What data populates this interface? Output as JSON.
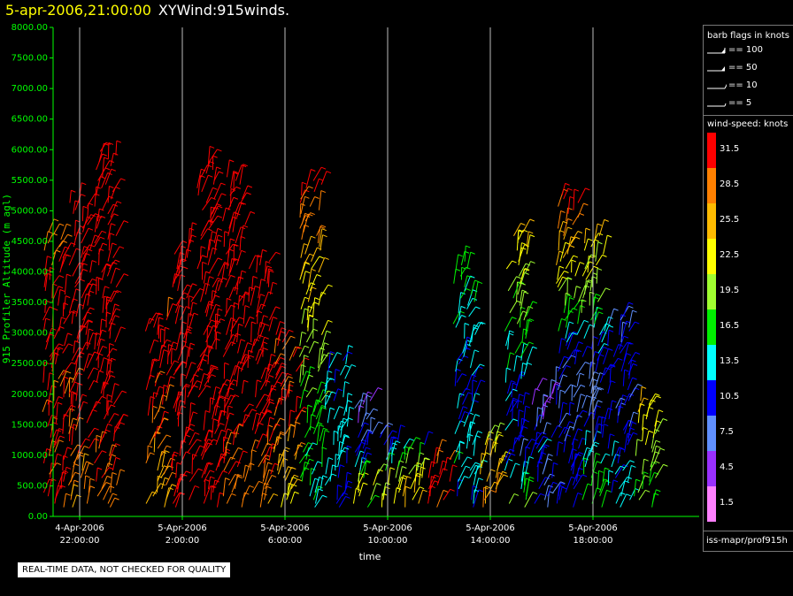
{
  "header": {
    "timestamp": "5-apr-2006,21:00:00",
    "product": "XYWind:915winds."
  },
  "legend": {
    "flag_title": "barb flags in knots",
    "flags": [
      {
        "label": "== 100",
        "knots": 100
      },
      {
        "label": "== 50",
        "knots": 50
      },
      {
        "label": "== 10",
        "knots": 10
      },
      {
        "label": "== 5",
        "knots": 5
      }
    ],
    "speed_title": "wind-speed: knots",
    "speed_bins": [
      {
        "label": "31.5",
        "color": "#ff0000"
      },
      {
        "label": "28.5",
        "color": "#ff8000"
      },
      {
        "label": "25.5",
        "color": "#ffbb00"
      },
      {
        "label": "22.5",
        "color": "#ffff00"
      },
      {
        "label": "19.5",
        "color": "#a0ff30"
      },
      {
        "label": "16.5",
        "color": "#00ee00"
      },
      {
        "label": "13.5",
        "color": "#00ffff"
      },
      {
        "label": "10.5",
        "color": "#0000ff"
      },
      {
        "label": "7.5",
        "color": "#6090ff"
      },
      {
        "label": "4.5",
        "color": "#9a30ff"
      },
      {
        "label": "1.5",
        "color": "#ff80ff"
      }
    ],
    "source": "iss-mapr/prof915h"
  },
  "notice": "REAL-TIME DATA, NOT CHECKED FOR QUALITY",
  "colors": {
    "axis": "#00ff00",
    "background": "#000000",
    "gridline": "#bbbbbb"
  },
  "chart_data": {
    "type": "scatter",
    "ylabel": "915 Profiler Altitude (m agl)",
    "xlabel": "time",
    "ylim": [
      0,
      8000
    ],
    "xlim_hours_since_4apr_2100": [
      0,
      24
    ],
    "yticks": [
      "0.00",
      "500.00",
      "1000.00",
      "1500.00",
      "2000.00",
      "2500.00",
      "3000.00",
      "3500.00",
      "4000.00",
      "4500.00",
      "5000.00",
      "5500.00",
      "6000.00",
      "6500.00",
      "7000.00",
      "7500.00",
      "8000.00"
    ],
    "xticks": [
      {
        "date": "4-Apr-2006",
        "time": "22:00:00"
      },
      {
        "date": "5-Apr-2006",
        "time": "2:00:00"
      },
      {
        "date": "5-Apr-2006",
        "time": "6:00:00"
      },
      {
        "date": "5-Apr-2006",
        "time": "10:00:00"
      },
      {
        "date": "5-Apr-2006",
        "time": "14:00:00"
      },
      {
        "date": "5-Apr-2006",
        "time": "18:00:00"
      }
    ],
    "grid": "vertical",
    "wind_columns": [
      {
        "x": "4-Apr-2006 21:00",
        "top": 4700,
        "speeds": [
          30,
          30,
          31,
          32,
          28
        ]
      },
      {
        "x": "4-Apr-2006 22:00",
        "top": 5200,
        "speeds": [
          26,
          30,
          32,
          33,
          33
        ]
      },
      {
        "x": "4-Apr-2006 23:00",
        "top": 6000,
        "speeds": [
          28,
          32,
          33,
          34,
          34
        ]
      },
      {
        "x": "5-Apr-2006 01:00",
        "top": 3300,
        "speeds": [
          26,
          27,
          30,
          31,
          31
        ]
      },
      {
        "x": "5-Apr-2006 02:00",
        "top": 4500,
        "speeds": [
          30,
          33,
          33,
          34,
          34
        ]
      },
      {
        "x": "5-Apr-2006 03:00",
        "top": 5800,
        "speeds": [
          31,
          32,
          33,
          34,
          34
        ]
      },
      {
        "x": "5-Apr-2006 04:00",
        "top": 5600,
        "speeds": [
          28,
          31,
          33,
          34,
          34
        ]
      },
      {
        "x": "5-Apr-2006 05:00",
        "top": 4200,
        "speeds": [
          27,
          30,
          33,
          33,
          34
        ]
      },
      {
        "x": "5-Apr-2006 06:00",
        "top": 3000,
        "speeds": [
          22,
          25,
          29,
          30,
          31
        ]
      },
      {
        "x": "5-Apr-2006 07:00",
        "top": 5500,
        "speeds": [
          14,
          17,
          20,
          25,
          32
        ]
      },
      {
        "x": "5-Apr-2006 08:00",
        "top": 2600,
        "speeds": [
          10,
          12,
          14,
          13,
          12
        ]
      },
      {
        "x": "5-Apr-2006 09:00",
        "top": 1900,
        "speeds": [
          18,
          22,
          10,
          8,
          5
        ]
      },
      {
        "x": "5-Apr-2006 10:00",
        "top": 1400,
        "speeds": [
          24,
          22,
          18,
          10,
          8
        ]
      },
      {
        "x": "5-Apr-2006 11:00",
        "top": 1200,
        "speeds": [
          26,
          24,
          20,
          12
        ]
      },
      {
        "x": "5-Apr-2006 12:00",
        "top": 1000,
        "speeds": [
          30,
          32,
          31,
          28
        ]
      },
      {
        "x": "5-Apr-2006 13:00",
        "top": 4200,
        "speeds": [
          12,
          14,
          11,
          14,
          17
        ]
      },
      {
        "x": "5-Apr-2006 14:00",
        "top": 1300,
        "speeds": [
          28,
          26,
          24,
          20
        ]
      },
      {
        "x": "5-Apr-2006 15:00",
        "top": 4700,
        "speeds": [
          20,
          10,
          12,
          16,
          20,
          25
        ]
      },
      {
        "x": "5-Apr-2006 16:00",
        "top": 2100,
        "speeds": [
          10,
          8,
          12,
          6,
          5
        ]
      },
      {
        "x": "5-Apr-2006 17:00",
        "top": 5300,
        "speeds": [
          12,
          10,
          8,
          16,
          25,
          32
        ]
      },
      {
        "x": "5-Apr-2006 18:00",
        "top": 4600,
        "speeds": [
          18,
          14,
          8,
          12,
          20,
          24
        ]
      },
      {
        "x": "5-Apr-2006 19:00",
        "top": 3300,
        "speeds": [
          14,
          12,
          9,
          11,
          8
        ]
      },
      {
        "x": "5-Apr-2006 20:00",
        "top": 1900,
        "speeds": [
          16,
          18,
          20,
          22,
          24
        ]
      }
    ]
  }
}
